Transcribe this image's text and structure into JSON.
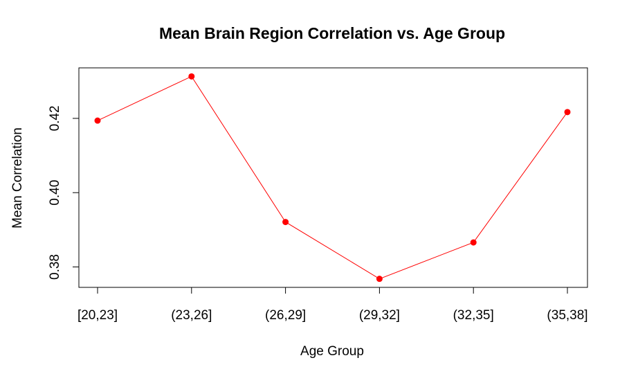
{
  "chart_data": {
    "type": "line",
    "title": "Mean Brain Region Correlation vs. Age Group",
    "xlabel": "Age Group",
    "ylabel": "Mean Correlation",
    "categories": [
      "[20,23]",
      "(23,26]",
      "(26,29]",
      "(29,32]",
      "(32,35]",
      "(35,38]"
    ],
    "values": [
      0.4194,
      0.4313,
      0.3921,
      0.3768,
      0.3866,
      0.4217
    ],
    "ylim": [
      0.3745,
      0.4336
    ],
    "yticks": [
      0.38,
      0.4,
      0.42
    ],
    "ytick_labels": [
      "0.38",
      "0.40",
      "0.42"
    ],
    "grid": false,
    "legend": "none",
    "colors": {
      "line": "#ff0000",
      "point": "#ff0000",
      "axis": "#000000"
    }
  }
}
